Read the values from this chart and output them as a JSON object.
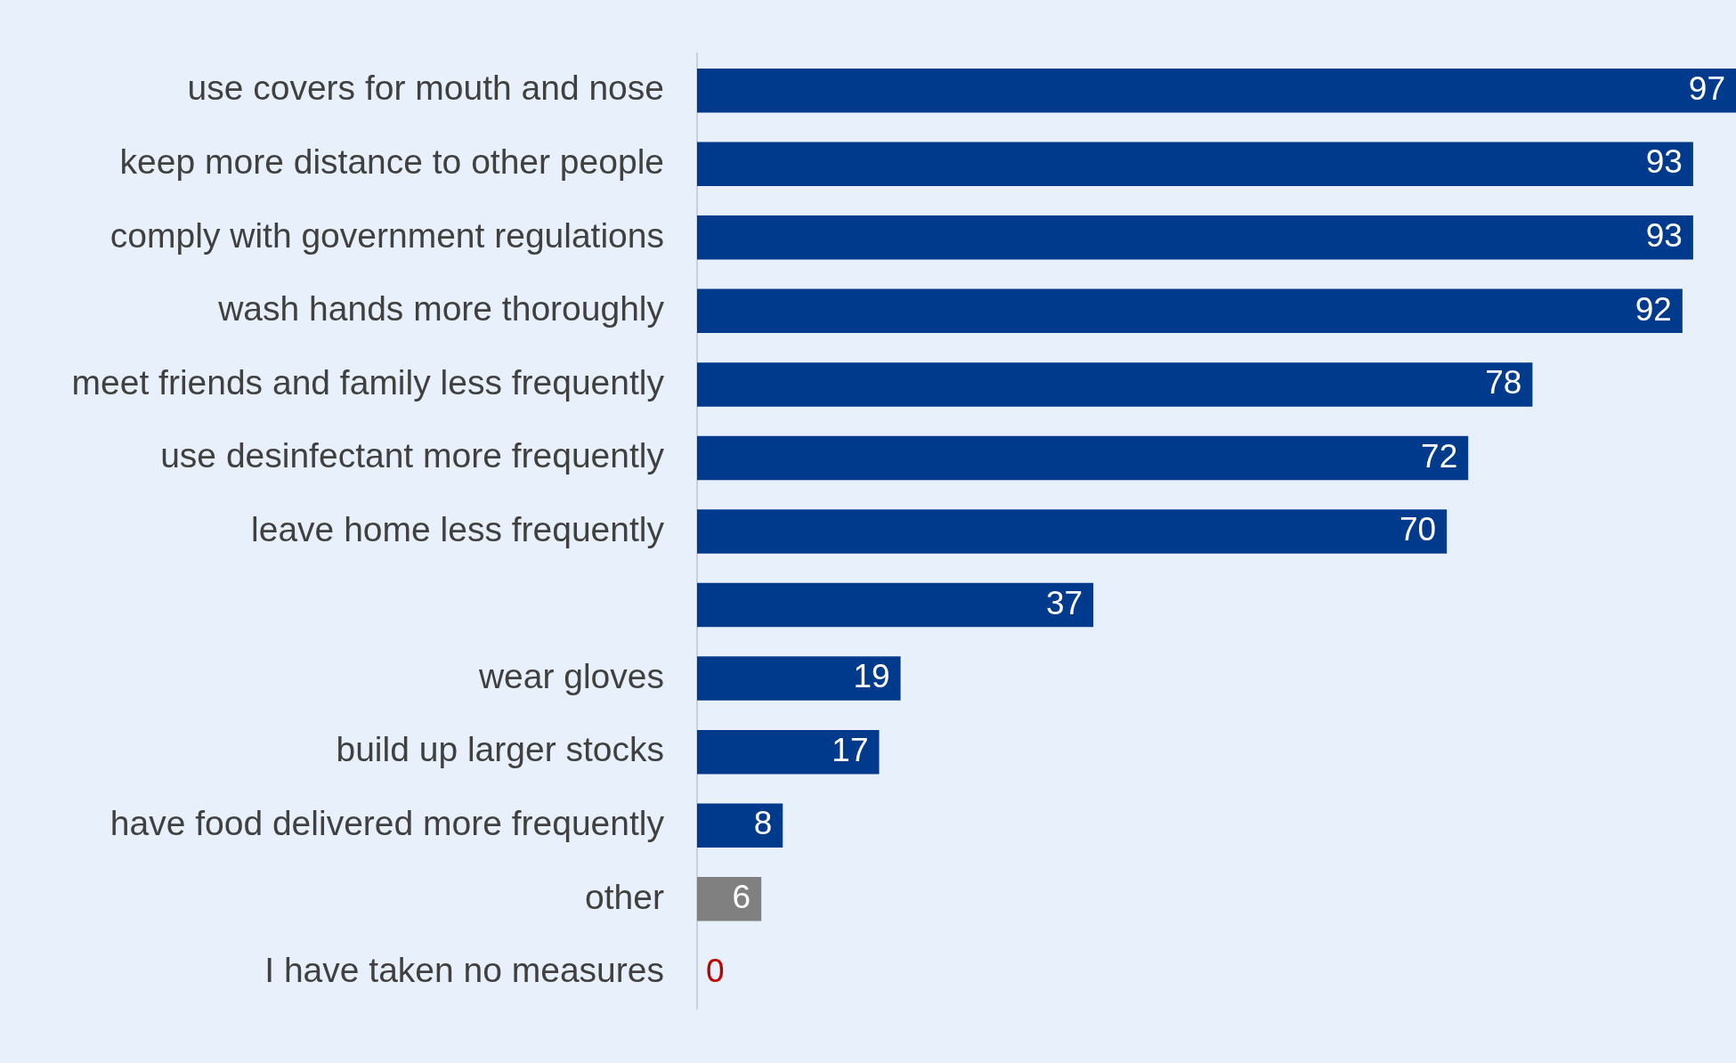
{
  "chart_data": {
    "type": "bar",
    "orientation": "horizontal",
    "categories": [
      "use covers for mouth and nose",
      "keep more distance to other people",
      "comply with government regulations",
      "wash hands more thoroughly",
      "meet friends and family less frequently",
      "use desinfectant more frequently",
      "leave home less frequently",
      null,
      "wear gloves",
      "build up larger stocks",
      "have food delivered more frequently",
      "other",
      "I have taken no measures"
    ],
    "values": [
      97,
      93,
      93,
      92,
      78,
      72,
      70,
      37,
      19,
      17,
      8,
      6,
      0
    ],
    "colors": [
      "#003a8c",
      "#003a8c",
      "#003a8c",
      "#003a8c",
      "#003a8c",
      "#003a8c",
      "#003a8c",
      "#003a8c",
      "#003a8c",
      "#003a8c",
      "#003a8c",
      "#808080",
      "#c00000"
    ],
    "xlim": [
      0,
      97
    ],
    "data_labels": true,
    "legend": false
  }
}
